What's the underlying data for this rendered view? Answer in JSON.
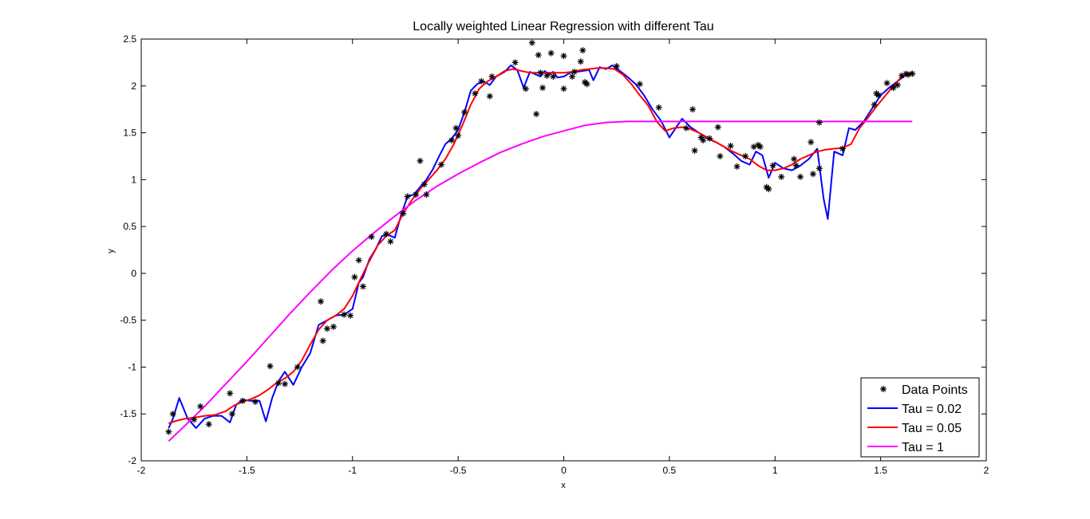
{
  "chart_data": {
    "type": "line",
    "title": "Locally weighted Linear Regression with different Tau",
    "xlabel": "x",
    "ylabel": "y",
    "xlim": [
      -2,
      2
    ],
    "ylim": [
      -2,
      2.5
    ],
    "xticks": [
      -2,
      -1.5,
      -1,
      -0.5,
      0,
      0.5,
      1,
      1.5,
      2
    ],
    "yticks": [
      -2,
      -1.5,
      -1,
      -0.5,
      0,
      0.5,
      1,
      1.5,
      2,
      2.5
    ],
    "xtick_labels": [
      "-2",
      "-1.5",
      "-1",
      "-0.5",
      "0",
      "0.5",
      "1",
      "1.5",
      "2"
    ],
    "ytick_labels": [
      "-2",
      "-1.5",
      "-1",
      "-0.5",
      "0",
      "0.5",
      "1",
      "1.5",
      "2",
      "2.5"
    ],
    "grid": false,
    "legend_position": "bottom-right",
    "points": {
      "name": "Data Points",
      "color": "#000000",
      "marker": "*",
      "x": [
        -1.87,
        -1.85,
        -1.72,
        -1.75,
        -1.68,
        -1.58,
        -1.57,
        -1.52,
        -1.46,
        -1.39,
        -1.35,
        -1.32,
        -1.26,
        -1.15,
        -1.14,
        -1.12,
        -1.09,
        -1.04,
        -1.01,
        -0.99,
        -0.97,
        -0.95,
        -0.91,
        -0.84,
        -0.82,
        -0.76,
        -0.74,
        -0.7,
        -0.68,
        -0.66,
        -0.65,
        -0.58,
        -0.53,
        -0.51,
        -0.5,
        -0.47,
        -0.42,
        -0.39,
        -0.35,
        -0.34,
        -0.23,
        -0.18,
        -0.15,
        -0.13,
        -0.12,
        -0.11,
        -0.1,
        -0.08,
        -0.06,
        -0.05,
        0.0,
        0.0,
        0.04,
        0.05,
        0.08,
        0.09,
        0.1,
        0.11,
        0.25,
        0.36,
        0.45,
        0.58,
        0.61,
        0.62,
        0.65,
        0.66,
        0.69,
        0.73,
        0.74,
        0.79,
        0.82,
        0.86,
        0.9,
        0.92,
        0.93,
        0.96,
        0.97,
        0.99,
        1.03,
        1.09,
        1.1,
        1.12,
        1.17,
        1.18,
        1.21,
        1.21,
        1.32,
        1.47,
        1.48,
        1.49,
        1.53,
        1.56,
        1.58,
        1.6,
        1.62,
        1.63,
        1.65
      ],
      "y": [
        -1.69,
        -1.5,
        -1.42,
        -1.56,
        -1.61,
        -1.28,
        -1.5,
        -1.36,
        -1.37,
        -0.99,
        -1.17,
        -1.18,
        -1.0,
        -0.3,
        -0.72,
        -0.59,
        -0.57,
        -0.44,
        -0.45,
        -0.04,
        0.14,
        -0.14,
        0.39,
        0.42,
        0.34,
        0.64,
        0.82,
        0.84,
        1.2,
        0.95,
        0.84,
        1.16,
        1.42,
        1.55,
        1.47,
        1.72,
        1.92,
        2.05,
        1.89,
        2.1,
        2.25,
        1.97,
        2.46,
        1.7,
        2.33,
        2.14,
        1.98,
        2.11,
        2.35,
        2.1,
        2.32,
        1.97,
        2.1,
        2.15,
        2.26,
        2.38,
        2.04,
        2.02,
        2.21,
        2.02,
        1.77,
        1.55,
        1.75,
        1.31,
        1.45,
        1.42,
        1.44,
        1.56,
        1.25,
        1.36,
        1.14,
        1.25,
        1.35,
        1.37,
        1.35,
        0.92,
        0.9,
        1.15,
        1.03,
        1.22,
        1.15,
        1.03,
        1.4,
        1.06,
        1.61,
        1.12,
        1.33,
        1.8,
        1.92,
        1.9,
        2.03,
        1.98,
        2.01,
        2.11,
        2.13,
        2.12,
        2.13
      ]
    },
    "series": [
      {
        "name": "Tau = 0.02",
        "color": "#0000ff",
        "x": [
          -1.87,
          -1.85,
          -1.82,
          -1.78,
          -1.74,
          -1.7,
          -1.66,
          -1.62,
          -1.58,
          -1.55,
          -1.52,
          -1.48,
          -1.44,
          -1.41,
          -1.38,
          -1.35,
          -1.32,
          -1.28,
          -1.24,
          -1.2,
          -1.16,
          -1.12,
          -1.08,
          -1.04,
          -1.0,
          -0.97,
          -0.95,
          -0.92,
          -0.89,
          -0.86,
          -0.83,
          -0.8,
          -0.77,
          -0.74,
          -0.71,
          -0.68,
          -0.65,
          -0.62,
          -0.59,
          -0.56,
          -0.53,
          -0.5,
          -0.47,
          -0.44,
          -0.41,
          -0.38,
          -0.35,
          -0.32,
          -0.28,
          -0.25,
          -0.22,
          -0.19,
          -0.16,
          -0.13,
          -0.11,
          -0.09,
          -0.07,
          -0.05,
          -0.03,
          0.0,
          0.03,
          0.06,
          0.09,
          0.12,
          0.14,
          0.17,
          0.2,
          0.23,
          0.26,
          0.3,
          0.34,
          0.38,
          0.42,
          0.46,
          0.5,
          0.53,
          0.56,
          0.6,
          0.64,
          0.68,
          0.72,
          0.76,
          0.8,
          0.84,
          0.88,
          0.91,
          0.94,
          0.97,
          1.0,
          1.04,
          1.08,
          1.12,
          1.16,
          1.2,
          1.23,
          1.25,
          1.28,
          1.32,
          1.35,
          1.38,
          1.42,
          1.46,
          1.5,
          1.54,
          1.58,
          1.62,
          1.65
        ],
        "y": [
          -1.65,
          -1.55,
          -1.33,
          -1.55,
          -1.65,
          -1.55,
          -1.52,
          -1.52,
          -1.59,
          -1.4,
          -1.35,
          -1.36,
          -1.36,
          -1.58,
          -1.33,
          -1.15,
          -1.05,
          -1.19,
          -1.0,
          -0.85,
          -0.55,
          -0.5,
          -0.45,
          -0.44,
          -0.38,
          -0.1,
          -0.04,
          0.15,
          0.26,
          0.4,
          0.41,
          0.38,
          0.62,
          0.82,
          0.84,
          0.92,
          1.0,
          1.11,
          1.25,
          1.38,
          1.44,
          1.53,
          1.72,
          1.95,
          2.02,
          2.05,
          2.01,
          2.1,
          2.15,
          2.22,
          2.17,
          1.98,
          2.15,
          2.12,
          2.1,
          2.16,
          2.12,
          2.15,
          2.09,
          2.1,
          2.14,
          2.15,
          2.16,
          2.17,
          2.06,
          2.2,
          2.18,
          2.22,
          2.17,
          2.1,
          2.02,
          1.9,
          1.75,
          1.63,
          1.45,
          1.55,
          1.65,
          1.56,
          1.5,
          1.44,
          1.4,
          1.35,
          1.28,
          1.2,
          1.16,
          1.3,
          1.26,
          1.02,
          1.18,
          1.12,
          1.1,
          1.15,
          1.22,
          1.33,
          0.8,
          0.58,
          1.3,
          1.26,
          1.55,
          1.53,
          1.62,
          1.76,
          1.9,
          1.98,
          2.05,
          2.12,
          2.14
        ]
      },
      {
        "name": "Tau = 0.05",
        "color": "#ff0000",
        "x": [
          -1.87,
          -1.83,
          -1.79,
          -1.75,
          -1.7,
          -1.65,
          -1.6,
          -1.56,
          -1.52,
          -1.48,
          -1.44,
          -1.4,
          -1.36,
          -1.32,
          -1.28,
          -1.24,
          -1.2,
          -1.16,
          -1.12,
          -1.08,
          -1.04,
          -1.0,
          -0.96,
          -0.92,
          -0.88,
          -0.84,
          -0.8,
          -0.76,
          -0.72,
          -0.68,
          -0.64,
          -0.6,
          -0.56,
          -0.52,
          -0.48,
          -0.44,
          -0.4,
          -0.36,
          -0.32,
          -0.28,
          -0.24,
          -0.2,
          -0.16,
          -0.12,
          -0.08,
          -0.04,
          0.0,
          0.04,
          0.08,
          0.12,
          0.16,
          0.2,
          0.24,
          0.28,
          0.32,
          0.36,
          0.4,
          0.44,
          0.48,
          0.52,
          0.56,
          0.6,
          0.64,
          0.68,
          0.72,
          0.76,
          0.8,
          0.84,
          0.88,
          0.92,
          0.96,
          1.0,
          1.04,
          1.08,
          1.12,
          1.16,
          1.2,
          1.24,
          1.28,
          1.32,
          1.36,
          1.4,
          1.44,
          1.48,
          1.52,
          1.56,
          1.6,
          1.65
        ],
        "y": [
          -1.6,
          -1.57,
          -1.55,
          -1.54,
          -1.52,
          -1.51,
          -1.47,
          -1.41,
          -1.37,
          -1.34,
          -1.3,
          -1.24,
          -1.17,
          -1.12,
          -1.05,
          -0.93,
          -0.76,
          -0.6,
          -0.5,
          -0.45,
          -0.38,
          -0.24,
          -0.05,
          0.13,
          0.3,
          0.4,
          0.46,
          0.64,
          0.78,
          0.9,
          1.0,
          1.1,
          1.22,
          1.38,
          1.58,
          1.8,
          1.97,
          2.05,
          2.1,
          2.16,
          2.18,
          2.16,
          2.14,
          2.14,
          2.14,
          2.14,
          2.14,
          2.15,
          2.17,
          2.18,
          2.19,
          2.19,
          2.18,
          2.12,
          2.02,
          1.9,
          1.79,
          1.62,
          1.52,
          1.55,
          1.56,
          1.54,
          1.5,
          1.45,
          1.4,
          1.35,
          1.3,
          1.26,
          1.22,
          1.15,
          1.1,
          1.1,
          1.12,
          1.16,
          1.22,
          1.26,
          1.3,
          1.32,
          1.33,
          1.34,
          1.38,
          1.55,
          1.66,
          1.78,
          1.89,
          2.0,
          2.1,
          2.15
        ]
      },
      {
        "name": "Tau = 1",
        "color": "#ff00ff",
        "x": [
          -1.87,
          -1.8,
          -1.7,
          -1.6,
          -1.5,
          -1.4,
          -1.3,
          -1.2,
          -1.1,
          -1.0,
          -0.9,
          -0.8,
          -0.7,
          -0.6,
          -0.5,
          -0.4,
          -0.3,
          -0.2,
          -0.1,
          0.0,
          0.1,
          0.2,
          0.3,
          0.4,
          0.5,
          0.6,
          0.7,
          0.8,
          0.9,
          1.0,
          1.1,
          1.2,
          1.3,
          1.4,
          1.5,
          1.65
        ],
        "y": [
          -1.79,
          -1.64,
          -1.42,
          -1.18,
          -0.94,
          -0.69,
          -0.44,
          -0.2,
          0.03,
          0.24,
          0.43,
          0.61,
          0.78,
          0.93,
          1.06,
          1.18,
          1.29,
          1.38,
          1.46,
          1.52,
          1.58,
          1.61,
          1.62,
          1.62,
          1.62,
          1.62,
          1.62,
          1.62,
          1.62,
          1.62,
          1.62,
          1.62,
          1.62,
          1.62,
          1.62,
          1.62
        ]
      }
    ]
  }
}
